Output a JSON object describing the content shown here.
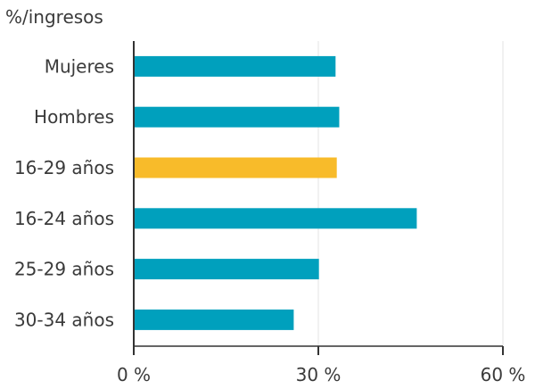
{
  "chart_data": {
    "type": "bar",
    "orientation": "horizontal",
    "unit_label": "%/ingresos",
    "categories": [
      "Mujeres",
      "Hombres",
      "16-29 años",
      "16-24 años",
      "25-29 años",
      "30-34 años"
    ],
    "values": [
      32.8,
      33.4,
      33.0,
      46.0,
      30.1,
      26.0
    ],
    "colors": [
      "#00a0bd",
      "#00a0bd",
      "#f8bb2a",
      "#00a0bd",
      "#00a0bd",
      "#00a0bd"
    ],
    "xlim": [
      0,
      60
    ],
    "x_ticks": [
      0,
      30,
      60
    ],
    "x_tick_labels": [
      "0 %",
      "30 %",
      "60 %"
    ],
    "grid": "vertical"
  }
}
